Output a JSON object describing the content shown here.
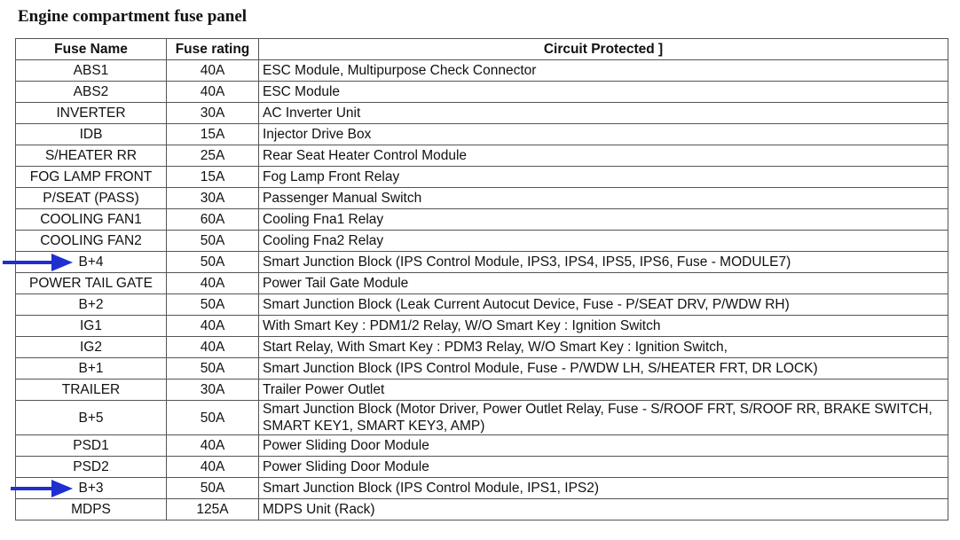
{
  "title": "Engine compartment fuse panel",
  "headers": [
    "Fuse Name",
    "Fuse rating",
    "Circuit Protected ]"
  ],
  "rows": [
    {
      "name": "ABS1",
      "rating": "40A",
      "circuit": "ESC Module, Multipurpose Check Connector"
    },
    {
      "name": "ABS2",
      "rating": "40A",
      "circuit": "ESC Module"
    },
    {
      "name": "INVERTER",
      "rating": "30A",
      "circuit": "AC Inverter Unit"
    },
    {
      "name": "IDB",
      "rating": "15A",
      "circuit": "Injector Drive Box"
    },
    {
      "name": "S/HEATER RR",
      "rating": "25A",
      "circuit": "Rear Seat Heater Control Module"
    },
    {
      "name": "FOG LAMP FRONT",
      "rating": "15A",
      "circuit": "Fog Lamp Front Relay"
    },
    {
      "name": "P/SEAT (PASS)",
      "rating": "30A",
      "circuit": "Passenger Manual Switch"
    },
    {
      "name": "COOLING FAN1",
      "rating": "60A",
      "circuit": "Cooling Fna1 Relay"
    },
    {
      "name": "COOLING FAN2",
      "rating": "50A",
      "circuit": "Cooling Fna2 Relay"
    },
    {
      "name": "B+4",
      "rating": "50A",
      "circuit": "Smart Junction Block (IPS Control Module, IPS3, IPS4, IPS5, IPS6, Fuse - MODULE7)",
      "highlighted": true
    },
    {
      "name": "POWER TAIL GATE",
      "rating": "40A",
      "circuit": "Power Tail Gate Module"
    },
    {
      "name": "B+2",
      "rating": "50A",
      "circuit": "Smart Junction Block (Leak Current Autocut Device, Fuse - P/SEAT DRV, P/WDW RH)"
    },
    {
      "name": "IG1",
      "rating": "40A",
      "circuit": "With Smart Key : PDM1/2 Relay, W/O Smart Key : Ignition Switch"
    },
    {
      "name": "IG2",
      "rating": "40A",
      "circuit": "Start Relay, With Smart Key : PDM3 Relay, W/O Smart Key : Ignition Switch,"
    },
    {
      "name": "B+1",
      "rating": "50A",
      "circuit": "Smart Junction Block (IPS Control Module, Fuse - P/WDW LH, S/HEATER FRT, DR LOCK)"
    },
    {
      "name": "TRAILER",
      "rating": "30A",
      "circuit": "Trailer Power Outlet"
    },
    {
      "name": "B+5",
      "rating": "50A",
      "circuit": "Smart Junction Block (Motor Driver, Power Outlet Relay, Fuse - S/ROOF FRT, S/ROOF RR, BRAKE SWITCH, SMART KEY1, SMART KEY3, AMP)"
    },
    {
      "name": "PSD1",
      "rating": "40A",
      "circuit": "Power Sliding Door Module"
    },
    {
      "name": "PSD2",
      "rating": "40A",
      "circuit": "Power Sliding Door Module"
    },
    {
      "name": "B+3",
      "rating": "50A",
      "circuit": "Smart Junction Block (IPS Control Module, IPS1, IPS2)",
      "highlighted": true
    },
    {
      "name": "MDPS",
      "rating": "125A",
      "circuit": "MDPS Unit (Rack)"
    }
  ],
  "arrow_color": "#1f2fd0",
  "arrow_icon": "arrow-right-icon"
}
